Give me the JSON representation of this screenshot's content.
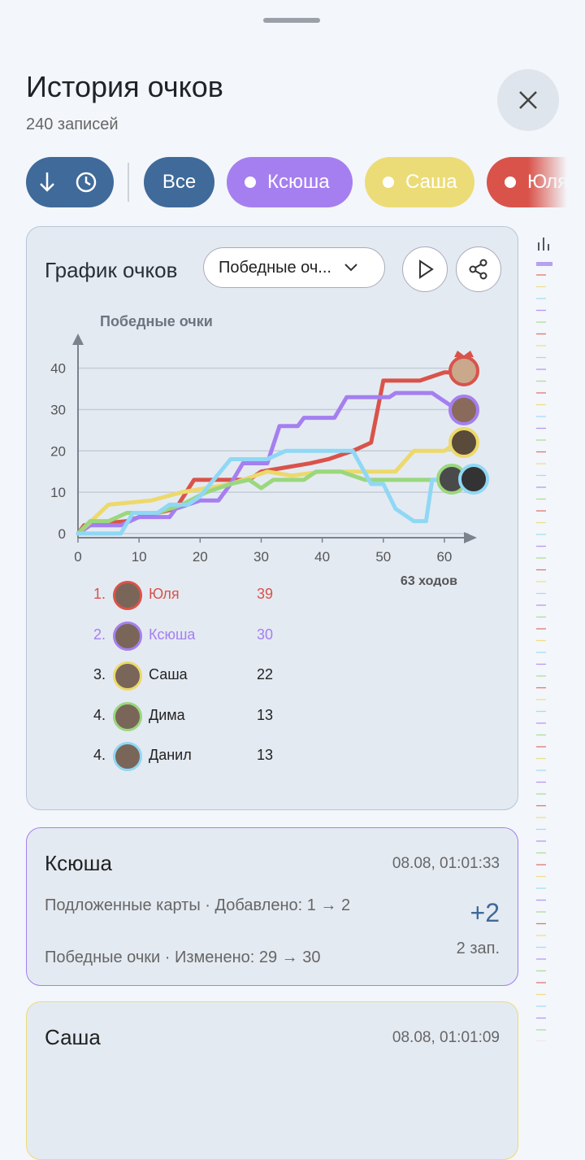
{
  "header": {
    "title": "История очков",
    "subtitle": "240 записей"
  },
  "filters": [
    "Все",
    "Ксюша",
    "Саша",
    "Юля"
  ],
  "filter_colors": [
    "#3f6a9a",
    "#a57ff0",
    "#ecdc77",
    "#d9534a"
  ],
  "chart_card": {
    "title": "График очков",
    "dropdown": "Победные оч..."
  },
  "chart_data": {
    "type": "line",
    "y_label": "Победные очки",
    "x_label": "63 ходов",
    "xlim": [
      0,
      64
    ],
    "ylim": [
      -1,
      48
    ],
    "xticks": [
      0,
      10,
      20,
      30,
      40,
      50,
      60
    ],
    "yticks": [
      0,
      10,
      20,
      30,
      40
    ],
    "grid": true,
    "series": [
      {
        "name": "Юля",
        "color": "#d9534a",
        "x": [
          0,
          1,
          8,
          10,
          16,
          19,
          28,
          30,
          34,
          38,
          41,
          45,
          48,
          50,
          56,
          60,
          62
        ],
        "values": [
          0,
          2,
          3,
          4,
          6,
          13,
          13,
          15,
          16,
          17,
          18,
          20,
          22,
          37,
          37,
          39,
          39
        ]
      },
      {
        "name": "Ксюша",
        "color": "#a57ff0",
        "x": [
          0,
          2,
          7,
          10,
          15,
          16,
          20,
          23,
          25,
          27,
          31,
          33,
          36,
          37,
          42,
          44,
          51,
          52,
          58,
          60,
          62
        ],
        "values": [
          0,
          2,
          2,
          4,
          4,
          6,
          8,
          8,
          12,
          17,
          17,
          26,
          26,
          28,
          28,
          33,
          33,
          34,
          34,
          32,
          30
        ]
      },
      {
        "name": "Саша",
        "color": "#ecd96b",
        "x": [
          0,
          5,
          12,
          17,
          25,
          31,
          35,
          40,
          52,
          55,
          60,
          62
        ],
        "values": [
          0,
          7,
          8,
          10,
          12,
          15,
          14,
          15,
          15,
          20,
          20,
          22
        ]
      },
      {
        "name": "Дима",
        "color": "#9ad77e",
        "x": [
          0,
          2,
          5,
          8,
          13,
          17,
          21,
          25,
          28,
          30,
          32,
          37,
          39,
          43,
          47,
          60,
          61
        ],
        "values": [
          0,
          3,
          3,
          5,
          5,
          7,
          10,
          12,
          13,
          11,
          13,
          13,
          15,
          15,
          13,
          13,
          13
        ]
      },
      {
        "name": "Данил",
        "color": "#8fd8f5",
        "x": [
          0,
          7,
          9,
          13,
          15,
          18,
          20,
          25,
          31,
          34,
          45,
          48,
          50,
          52,
          55,
          57,
          58,
          62
        ],
        "values": [
          0,
          0,
          5,
          5,
          7,
          7,
          9,
          18,
          18,
          20,
          20,
          12,
          12,
          6,
          3,
          3,
          13,
          13
        ]
      }
    ]
  },
  "leaderboard": [
    {
      "rank": "1.",
      "name": "Юля",
      "score": 39,
      "color": "#d9534a",
      "highlight": true
    },
    {
      "rank": "2.",
      "name": "Ксюша",
      "score": 30,
      "color": "#a57ff0",
      "highlight": true
    },
    {
      "rank": "3.",
      "name": "Саша",
      "score": 22,
      "color": "#ecd96b",
      "highlight": false
    },
    {
      "rank": "4.",
      "name": "Дима",
      "score": 13,
      "color": "#9ad77e",
      "highlight": false
    },
    {
      "rank": "4.",
      "name": "Данил",
      "score": 13,
      "color": "#8fd8f5",
      "highlight": false
    }
  ],
  "entries": [
    {
      "name": "Ксюша",
      "time": "08.08, 01:01:33",
      "lines": [
        "Подложенные карты · Добавлено: 1 → 2",
        "Победные очки · Изменено: 29 → 30"
      ],
      "delta": "+2",
      "count": "2 зап.",
      "color": "#a57ff0"
    },
    {
      "name": "Саша",
      "time": "08.08, 01:01:09",
      "color": "#ecdc77"
    }
  ]
}
